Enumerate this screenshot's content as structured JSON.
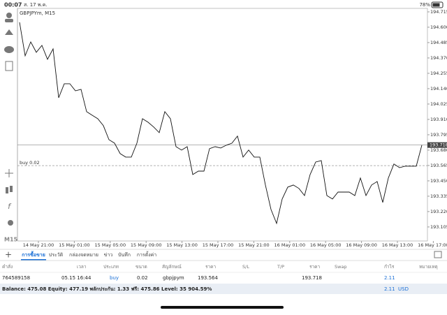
{
  "status": {
    "time": "00:07",
    "date": "ส. 17 พ.ค.",
    "battery": "78%"
  },
  "timeframe": "M15",
  "chart": {
    "type": "line",
    "symbol": "GBPJPYm, M15",
    "color": "#111111",
    "categories": [
      "14 May 21:00",
      "15 May 01:00",
      "15 May 05:00",
      "15 May 09:00",
      "15 May 13:00",
      "15 May 17:00",
      "15 May 21:00",
      "16 May 01:00",
      "16 May 05:00",
      "16 May 09:00",
      "16 May 13:00",
      "16 May 17:00"
    ],
    "values": [
      194.637,
      194.386,
      194.49,
      194.412,
      194.464,
      194.36,
      194.438,
      194.072,
      194.177,
      194.177,
      194.124,
      194.135,
      193.968,
      193.941,
      193.915,
      193.863,
      193.758,
      193.732,
      193.654,
      193.628,
      193.628,
      193.732,
      193.915,
      193.889,
      193.853,
      193.811,
      193.968,
      193.915,
      193.706,
      193.68,
      193.706,
      193.497,
      193.523,
      193.523,
      193.691,
      193.706,
      193.696,
      193.717,
      193.732,
      193.785,
      193.628,
      193.68,
      193.628,
      193.628,
      193.419,
      193.236,
      193.131,
      193.314,
      193.403,
      193.419,
      193.393,
      193.34,
      193.497,
      193.591,
      193.602,
      193.34,
      193.314,
      193.366,
      193.366,
      193.366,
      193.34,
      193.471,
      193.34,
      193.419,
      193.445,
      193.288,
      193.471,
      193.576,
      193.549,
      193.56,
      193.56,
      193.56,
      193.718
    ],
    "ylim": [
      193.0,
      194.741
    ],
    "yticks": [
      193.105,
      {
        "value": 193.22,
        "label": "193.220"
      },
      193.335,
      {
        "value": 193.45,
        "label": "193.450"
      },
      193.565,
      {
        "value": 193.68,
        "label": "193.680"
      },
      193.795,
      {
        "value": 193.91,
        "label": "193.910"
      },
      194.025,
      {
        "value": 194.14,
        "label": "194.140"
      },
      194.255,
      {
        "value": 194.37,
        "label": "194.370"
      },
      194.485,
      {
        "value": 194.6,
        "label": "194.600"
      },
      194.715
    ],
    "position_label": "buy 0.02"
  },
  "tabs": [
    "การซื้อขาย",
    "ประวัติ",
    "กล่องจดหมาย",
    "ข่าว",
    "บันทึก",
    "การตั้งค่า"
  ],
  "table": {
    "headers": [
      "คำสั่ง",
      "เวลา",
      "ประเภท",
      "ขนาด",
      "สัญลักษณ์",
      "ราคา",
      "S/L",
      "T/P",
      "ราคา",
      "Swap",
      "กำไร",
      "หมายเหตุ"
    ],
    "row": {
      "order": 764589158,
      "time": "05.15 16:44",
      "type": "buy",
      "volume": 0.02,
      "symbol": "gbpjpym",
      "price": 193.564,
      "current_price": 193.718,
      "profit": 2.11
    }
  },
  "balance": {
    "text": "Balance: 475.08 Equity: 477.19 พลักประกัน: 1.33 ฟรี: 475.86 Level: 35 904.59%",
    "profit": 2.11,
    "currency": "USD"
  }
}
